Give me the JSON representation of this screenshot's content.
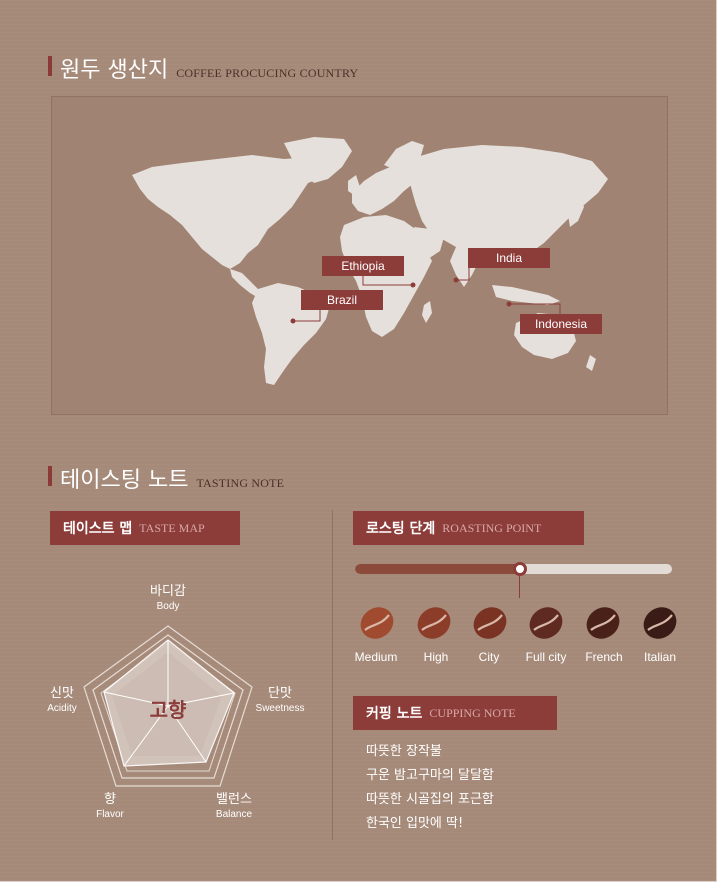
{
  "origin": {
    "title_kr": "원두 생산지",
    "title_en": "COFFEE PROCUCING COUNTRY",
    "countries": [
      {
        "name": "Ethiopia"
      },
      {
        "name": "India"
      },
      {
        "name": "Brazil"
      },
      {
        "name": "Indonesia"
      }
    ]
  },
  "tasting": {
    "title_kr": "테이스팅 노트",
    "title_en": "TASTING NOTE"
  },
  "taste_map": {
    "title_kr": "테이스트 맵",
    "title_en": "TASTE MAP",
    "center_label": "고향",
    "axes": [
      {
        "kr": "바디감",
        "en": "Body"
      },
      {
        "kr": "단맛",
        "en": "Sweetness"
      },
      {
        "kr": "밸런스",
        "en": "Balance"
      },
      {
        "kr": "향",
        "en": "Flavor"
      },
      {
        "kr": "신맛",
        "en": "Acidity"
      }
    ]
  },
  "roasting": {
    "title_kr": "로스팅 단계",
    "title_en": "ROASTING POINT",
    "progress": 0.52,
    "levels": [
      {
        "label": "Medium",
        "color": "#a04b30"
      },
      {
        "label": "High",
        "color": "#8c3d29"
      },
      {
        "label": "City",
        "color": "#7a3323"
      },
      {
        "label": "Full city",
        "color": "#5f2a20"
      },
      {
        "label": "French",
        "color": "#4a2119"
      },
      {
        "label": "Italian",
        "color": "#3a1b15"
      }
    ]
  },
  "cupping": {
    "title_kr": "커핑 노트",
    "title_en": "CUPPING NOTE",
    "notes": [
      "따뜻한 장작불",
      "구운 밤고구마의 달달함",
      "따뜻한 시골집의 포근함",
      "한국인 입맛에 딱!"
    ]
  },
  "colors": {
    "background": "#a68a79",
    "accent": "#8c3c39",
    "map_land": "#e6e0dc"
  }
}
